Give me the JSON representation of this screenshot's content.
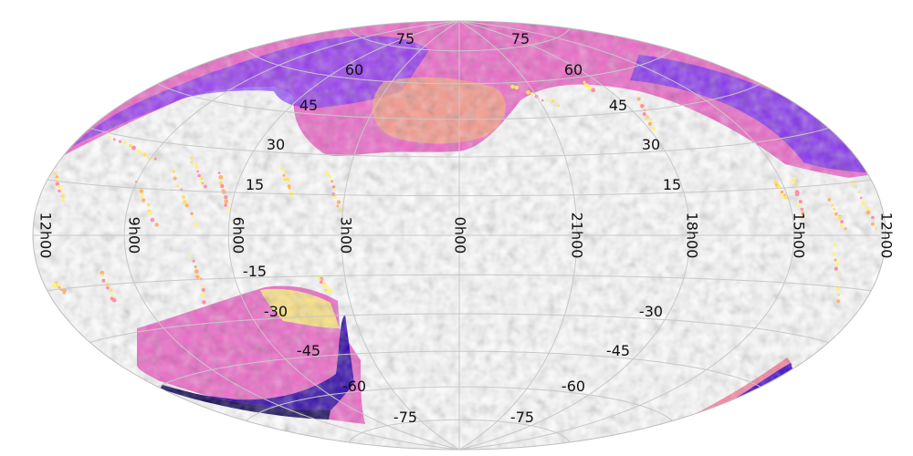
{
  "projection": "Aitoff-Hammer all-sky",
  "colors": {
    "background": "#ffffff",
    "grid": "#c8c8c8",
    "density_low": "#fff6a0",
    "density_mid": "#ff8fa8",
    "density_high_a": "#ee55dd",
    "density_high_b": "#7a2cff",
    "density_peak": "#1a0090"
  },
  "ra_labels": [
    "12h00",
    "9h00",
    "6h00",
    "3h00",
    "0h00",
    "21h00",
    "18h00",
    "15h00",
    "12h00"
  ],
  "dec_labels": {
    "north": [
      "75",
      "60",
      "45",
      "30",
      "15"
    ],
    "north_right": [
      "75",
      "60",
      "45",
      "30",
      "15"
    ],
    "south_left": [
      "-15",
      "-30",
      "-45",
      "-60",
      "-75"
    ],
    "south_right": [
      "-30",
      "-45",
      "-60",
      "-75"
    ]
  }
}
